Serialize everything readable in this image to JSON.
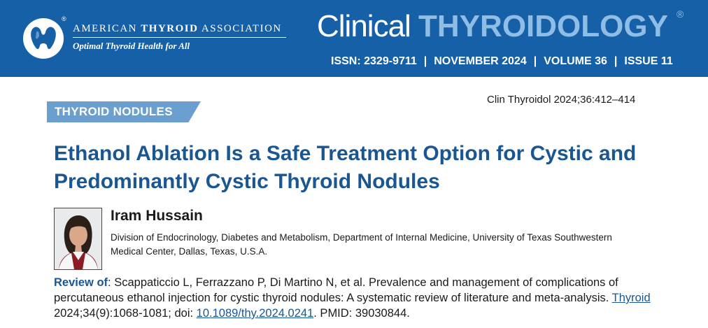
{
  "header": {
    "association": {
      "name_part1": "American",
      "name_part2": "Thyroid",
      "name_part3": "Association",
      "registered": "®",
      "tagline": "Optimal Thyroid Health for All",
      "logo_icon": "thyroid-gland-logo-icon"
    },
    "journal": {
      "name_part1": "Clinical ",
      "name_part2": "THYROIDOLOGY",
      "registered": "®"
    },
    "issue_line": {
      "issn": "ISSN: 2329-9711",
      "date": "NOVEMBER 2024",
      "volume": "VOLUME 36",
      "issue": "ISSUE 11",
      "separator": "|"
    }
  },
  "citation": "Clin Thyroidol 2024;36:412–414",
  "section": "THYROID NODULES",
  "title": "Ethanol Ablation Is a Safe Treatment Option for Cystic and Predominantly Cystic Thyroid Nodules",
  "author": {
    "name": "Iram Hussain",
    "affiliation": "Division of Endocrinology, Diabetes and Metabolism, Department of Internal Medicine, University of Texas Southwestern Medical Center, Dallas, Texas, U.S.A."
  },
  "review": {
    "label": "Review of",
    "colon": ":",
    "text_main": " Scappaticcio L, Ferrazzano P, Di Martino N, et al. Prevalence and management of complications of percutaneous ethanol injection for cystic thyroid nodules: A systematic review of literature and meta-analysis. ",
    "journal_link": "Thyroid",
    "text_mid": " 2024;34(9):1068-1081; doi: ",
    "doi_link": "10.1089/thy.2024.0241",
    "text_end": ". PMID: 39030844."
  },
  "colors": {
    "header_blue": "#1660a8",
    "title_blue": "#1a5792",
    "section_tab": "#6a9fd0",
    "journal_light_blue": "#8fbde6"
  }
}
